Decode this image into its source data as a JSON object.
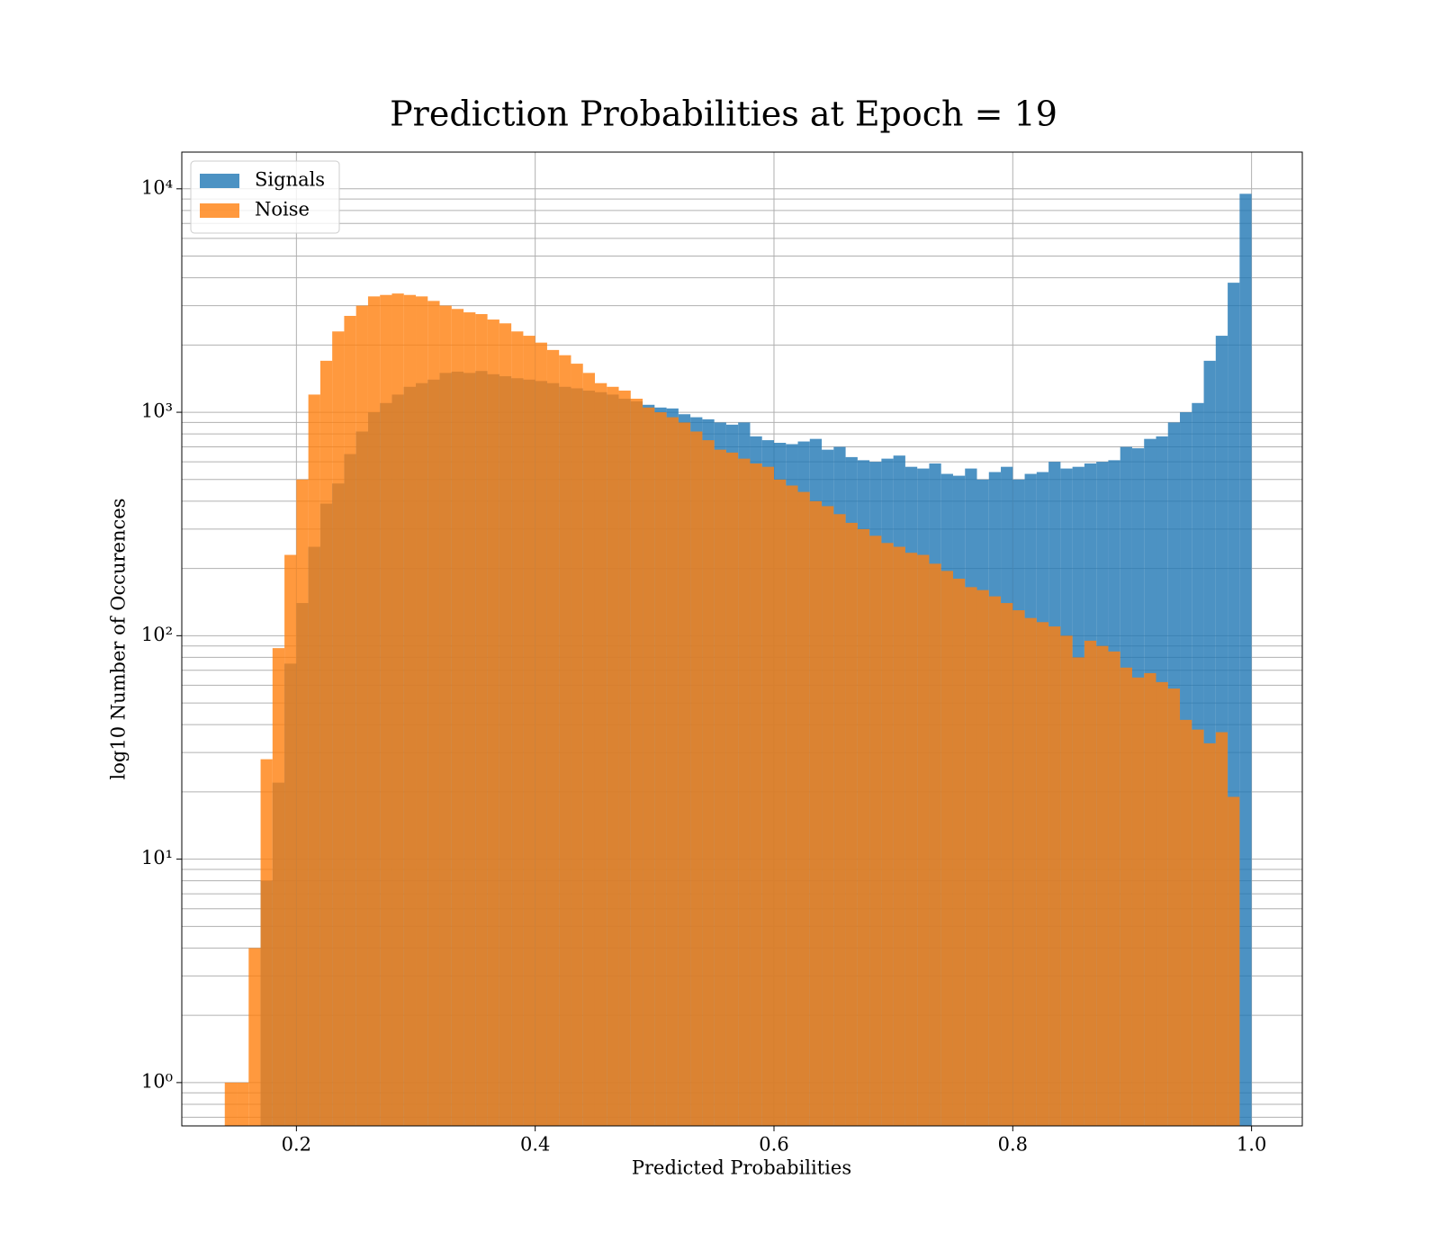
{
  "chart_data": {
    "type": "histogram",
    "title": "Prediction Probabilities at Epoch = 19",
    "xlabel": "Predicted Probabilities",
    "ylabel": "log10 Number of Occurences",
    "bins": [
      0.14,
      0.15,
      0.16,
      0.17,
      0.18,
      0.19,
      0.2,
      0.21,
      0.22,
      0.23,
      0.24,
      0.25,
      0.26,
      0.27,
      0.28,
      0.29,
      0.3,
      0.31,
      0.32,
      0.33,
      0.34,
      0.35,
      0.36,
      0.37,
      0.38,
      0.39,
      0.4,
      0.41,
      0.42,
      0.43,
      0.44,
      0.45,
      0.46,
      0.47,
      0.48,
      0.49,
      0.5,
      0.51,
      0.52,
      0.53,
      0.54,
      0.55,
      0.56,
      0.57,
      0.58,
      0.59,
      0.6,
      0.61,
      0.62,
      0.63,
      0.64,
      0.65,
      0.66,
      0.67,
      0.68,
      0.69,
      0.7,
      0.71,
      0.72,
      0.73,
      0.74,
      0.75,
      0.76,
      0.77,
      0.78,
      0.79,
      0.8,
      0.81,
      0.82,
      0.83,
      0.84,
      0.85,
      0.86,
      0.87,
      0.88,
      0.89,
      0.9,
      0.91,
      0.92,
      0.93,
      0.94,
      0.95,
      0.96,
      0.97,
      0.98,
      0.99,
      1.0
    ],
    "series": [
      {
        "name": "Signals",
        "color": "#1f77b4",
        "values": [
          0,
          0,
          0,
          8,
          22,
          75,
          140,
          250,
          390,
          480,
          650,
          820,
          1000,
          1100,
          1200,
          1300,
          1350,
          1400,
          1500,
          1520,
          1500,
          1530,
          1480,
          1450,
          1420,
          1400,
          1380,
          1350,
          1300,
          1280,
          1250,
          1230,
          1200,
          1150,
          1120,
          1080,
          1050,
          1040,
          980,
          950,
          930,
          900,
          880,
          900,
          780,
          750,
          730,
          720,
          740,
          760,
          680,
          700,
          630,
          610,
          600,
          620,
          640,
          570,
          560,
          590,
          530,
          520,
          560,
          500,
          540,
          570,
          500,
          530,
          540,
          600,
          560,
          570,
          590,
          600,
          610,
          700,
          690,
          760,
          780,
          900,
          1000,
          1100,
          1700,
          2200,
          3800,
          9500
        ]
      },
      {
        "name": "Noise",
        "color": "#ff7f0e",
        "values": [
          1,
          1,
          4,
          28,
          88,
          230,
          500,
          1200,
          1700,
          2300,
          2700,
          3000,
          3300,
          3350,
          3400,
          3350,
          3300,
          3150,
          3000,
          2900,
          2800,
          2750,
          2600,
          2500,
          2300,
          2200,
          2050,
          1900,
          1800,
          1650,
          1500,
          1350,
          1300,
          1250,
          1150,
          1050,
          1000,
          950,
          900,
          820,
          750,
          680,
          660,
          620,
          590,
          570,
          500,
          470,
          440,
          400,
          380,
          350,
          320,
          300,
          280,
          260,
          250,
          235,
          230,
          210,
          195,
          180,
          165,
          160,
          150,
          140,
          130,
          120,
          115,
          110,
          100,
          80,
          95,
          90,
          85,
          72,
          65,
          68,
          62,
          58,
          42,
          38,
          33,
          37,
          19,
          0
        ]
      }
    ],
    "alpha": 0.8,
    "xlim": [
      0.104,
      1.0425
    ],
    "xticks": [
      0.2,
      0.4,
      0.6,
      0.8,
      {
        "value": 1.0,
        "label": "1.0"
      }
    ],
    "ylim": [
      0.64,
      14600
    ],
    "ylog": true,
    "yticks": [
      {
        "value": 1,
        "label": "10⁰"
      },
      {
        "value": 10,
        "label": "10¹"
      },
      {
        "value": 100,
        "label": "10²"
      },
      {
        "value": 1000,
        "label": "10³"
      },
      {
        "value": 10000,
        "label": "10⁴"
      }
    ],
    "grid": true,
    "minor_grid": true,
    "legend": "upper left"
  }
}
